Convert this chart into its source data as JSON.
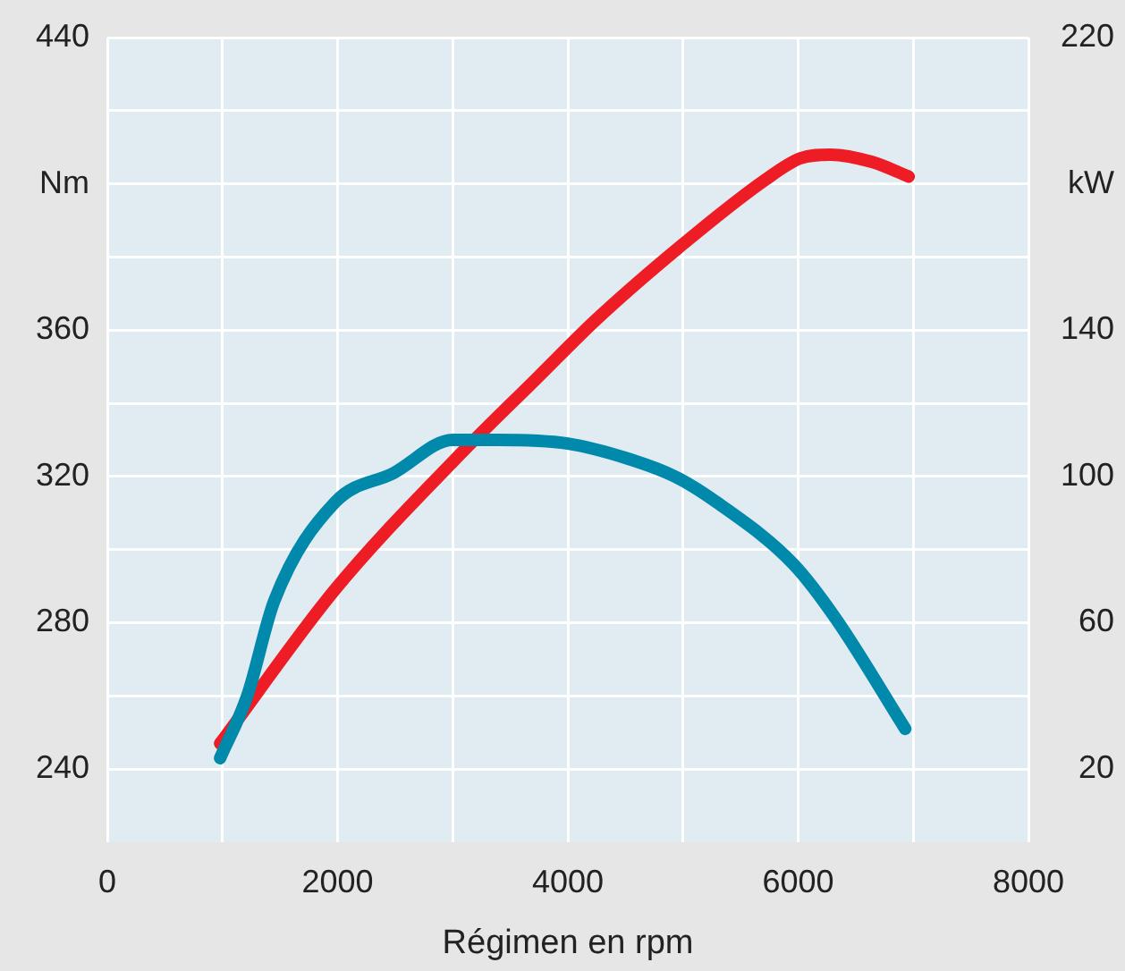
{
  "chart_data": {
    "type": "line",
    "xlabel": "Régimen en rpm",
    "xlim": [
      0,
      8000
    ],
    "xticks": [
      0,
      {
        "value": 1000,
        "label": null
      },
      2000,
      {
        "value": 3000,
        "label": null
      },
      4000,
      {
        "value": 5000,
        "label": null
      },
      6000,
      {
        "value": 7000,
        "label": null
      },
      8000
    ],
    "ylim": [
      220,
      440
    ],
    "yticks": [
      240,
      {
        "value": 260,
        "label": null
      },
      280,
      {
        "value": 300,
        "label": null
      },
      320,
      {
        "value": 340,
        "label": null
      },
      360,
      {
        "value": 380,
        "label": null
      },
      {
        "value": 400,
        "label": "Nm"
      },
      {
        "value": 420,
        "label": null
      },
      440
    ],
    "y2lim": [
      0,
      220
    ],
    "y2ticks": [
      20,
      {
        "value": 40,
        "label": null
      },
      60,
      {
        "value": 80,
        "label": null
      },
      100,
      {
        "value": 120,
        "label": null
      },
      140,
      {
        "value": 160,
        "label": null
      },
      {
        "value": 180,
        "label": "kW"
      },
      {
        "value": 200,
        "label": null
      },
      220
    ],
    "grid": true,
    "marker": "none",
    "series": [
      {
        "color": "#0089aa",
        "x": [
          980,
          1215,
          1450,
          1980,
          2490,
          3000,
          3380,
          4000,
          4510,
          4930,
          5290,
          5960,
          6330,
          6930
        ],
        "values": [
          243,
          260,
          286,
          313,
          321,
          330,
          330,
          329,
          325,
          320,
          313,
          296,
          281,
          251
        ]
      },
      {
        "color": "#ee1c25",
        "axis": "y2",
        "x": [
          980,
          1975,
          3000,
          3735,
          4250,
          4980,
          5710,
          6020,
          6280,
          6640,
          6960
        ],
        "values": [
          27,
          69,
          104,
          127,
          143,
          163,
          181,
          187,
          188,
          186,
          182
        ]
      }
    ]
  }
}
